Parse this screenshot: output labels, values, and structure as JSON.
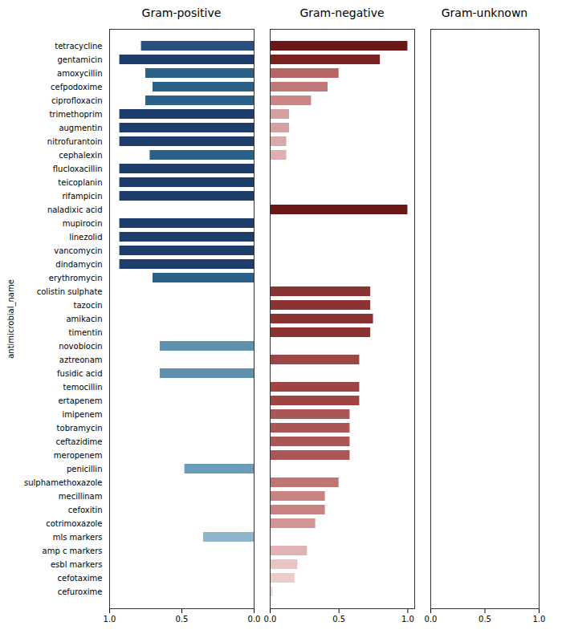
{
  "chart_data": [
    {
      "type": "bar",
      "orientation": "horizontal",
      "title": "Gram-positive",
      "ylabel": "antimicrobial_name",
      "categories": [
        "tetracycline",
        "gentamicin",
        "amoxycillin",
        "cefpodoxime",
        "ciprofloxacin",
        "trimethoprim",
        "augmentin",
        "nitrofurantoin",
        "cephalexin",
        "flucloxacillin",
        "teicoplanin",
        "rifampicin",
        "naladixic acid",
        "mupirocin",
        "linezolid",
        "vancomycin",
        "dindamycin",
        "erythromycin",
        "colistin sulphate",
        "tazocin",
        "amikacin",
        "timentin",
        "novobiocin",
        "aztreonam",
        "fusidic acid",
        "temocillin",
        "ertapenem",
        "imipenem",
        "tobramycin",
        "ceftazidime",
        "meropenem",
        "penicillin",
        "sulphamethoxazole",
        "mecillinam",
        "cefoxitin",
        "cotrimoxazole",
        "mls markers",
        "amp c markers",
        "esbl markers",
        "cefotaxime",
        "cefuroxime"
      ],
      "values": [
        0.78,
        0.93,
        0.75,
        0.7,
        0.75,
        0.93,
        0.93,
        0.93,
        0.72,
        0.93,
        0.93,
        0.93,
        0.0,
        0.93,
        0.93,
        0.93,
        0.93,
        0.7,
        0.0,
        0.0,
        0.0,
        0.0,
        0.65,
        0.0,
        0.65,
        0.0,
        0.0,
        0.0,
        0.0,
        0.0,
        0.0,
        0.48,
        0.0,
        0.0,
        0.0,
        0.0,
        0.35,
        0.0,
        0.0,
        0.0,
        0.0
      ],
      "colors": [
        "#2b4f7e",
        "#1e3d6b",
        "#2b6089",
        "#2b6089",
        "#2b6089",
        "#1e3d6b",
        "#1e3d6b",
        "#1e3d6b",
        "#2b6089",
        "#1e3d6b",
        "#1e3d6b",
        "#1e3d6b",
        null,
        "#1e3d6b",
        "#1e3d6b",
        "#1e3d6b",
        "#1e3d6b",
        "#2b6089",
        null,
        null,
        null,
        null,
        "#5e8fad",
        null,
        "#5e8fad",
        null,
        null,
        null,
        null,
        null,
        null,
        "#6b9dba",
        null,
        null,
        null,
        null,
        "#8db5cc",
        null,
        null,
        null,
        null
      ],
      "xlim": [
        1.0,
        0.0
      ],
      "xticks": [
        {
          "value": 0.0,
          "label": "0.0"
        },
        0.5,
        {
          "value": 1.0,
          "label": "1.0"
        }
      ]
    },
    {
      "type": "bar",
      "orientation": "horizontal",
      "title": "Gram-negative",
      "tick_labels": "x",
      "categories": [
        "tetracycline",
        "gentamicin",
        "amoxycillin",
        "cefpodoxime",
        "ciprofloxacin",
        "trimethoprim",
        "augmentin",
        "nitrofurantoin",
        "cephalexin",
        "flucloxacillin",
        "teicoplanin",
        "rifampicin",
        "naladixic acid",
        "mupirocin",
        "linezolid",
        "vancomycin",
        "dindamycin",
        "erythromycin",
        "colistin sulphate",
        "tazocin",
        "amikacin",
        "timentin",
        "novobiocin",
        "aztreonam",
        "fusidic acid",
        "temocillin",
        "ertapenem",
        "imipenem",
        "tobramycin",
        "ceftazidime",
        "meropenem",
        "penicillin",
        "sulphamethoxazole",
        "mecillinam",
        "cefoxitin",
        "cotrimoxazole",
        "mls markers",
        "amp c markers",
        "esbl markers",
        "cefotaxime",
        "cefuroxime"
      ],
      "values": [
        1.0,
        0.8,
        0.5,
        0.42,
        0.3,
        0.14,
        0.14,
        0.12,
        0.12,
        0.0,
        0.0,
        0.0,
        1.0,
        0.0,
        0.0,
        0.0,
        0.0,
        0.0,
        0.73,
        0.73,
        0.75,
        0.73,
        0.0,
        0.65,
        0.0,
        0.65,
        0.65,
        0.58,
        0.58,
        0.58,
        0.58,
        0.0,
        0.5,
        0.4,
        0.4,
        0.33,
        0.0,
        0.27,
        0.2,
        0.18,
        0.02
      ],
      "colors": [
        "#6b1717",
        "#7a2222",
        "#b86565",
        "#c07878",
        "#cc8585",
        "#d4a0a0",
        "#d4a0a0",
        "#d8aaaa",
        "#dcb0b0",
        null,
        null,
        null,
        "#6b1717",
        null,
        null,
        null,
        null,
        null,
        "#8b3232",
        "#8b3232",
        "#8b3232",
        "#8b3232",
        null,
        "#9e4444",
        null,
        "#9e4444",
        "#9e4444",
        "#aa5656",
        "#aa5656",
        "#aa5656",
        "#aa5656",
        null,
        "#c07575",
        "#c88282",
        "#c88282",
        "#d49494",
        null,
        "#e0b4b4",
        "#e8c4c4",
        "#eacccc",
        "#f0d8d8"
      ],
      "xlim": [
        0.0,
        1.05
      ],
      "xticks": [
        {
          "value": 0.0,
          "label": "0.0"
        },
        0.5,
        {
          "value": 1.0,
          "label": "1.0"
        }
      ]
    },
    {
      "type": "bar",
      "orientation": "horizontal",
      "title": "Gram-unknown",
      "tick_labels": "x",
      "categories": [
        "tetracycline",
        "gentamicin",
        "amoxycillin",
        "cefpodoxime",
        "ciprofloxacin",
        "trimethoprim",
        "augmentin",
        "nitrofurantoin",
        "cephalexin",
        "flucloxacillin",
        "teicoplanin",
        "rifampicin",
        "naladixic acid",
        "mupirocin",
        "linezolid",
        "vancomycin",
        "dindamycin",
        "erythromycin",
        "colistin sulphate",
        "tazocin",
        "amikacin",
        "timentin",
        "novobiocin",
        "aztreonam",
        "fusidic acid",
        "temocillin",
        "ertapenem",
        "imipenem",
        "tobramycin",
        "ceftazidime",
        "meropenem",
        "penicillin",
        "sulphamethoxazole",
        "mecillinam",
        "cefoxitin",
        "cotrimoxazole",
        "mls markers",
        "amp c markers",
        "esbl markers",
        "cefotaxime",
        "cefuroxime"
      ],
      "xlim": [
        0.0,
        1.0
      ],
      "xticks": [
        {
          "value": 0.0,
          "label": "0.0"
        },
        0.5,
        {
          "value": 1.0,
          "label": "1.0"
        }
      ]
    }
  ]
}
